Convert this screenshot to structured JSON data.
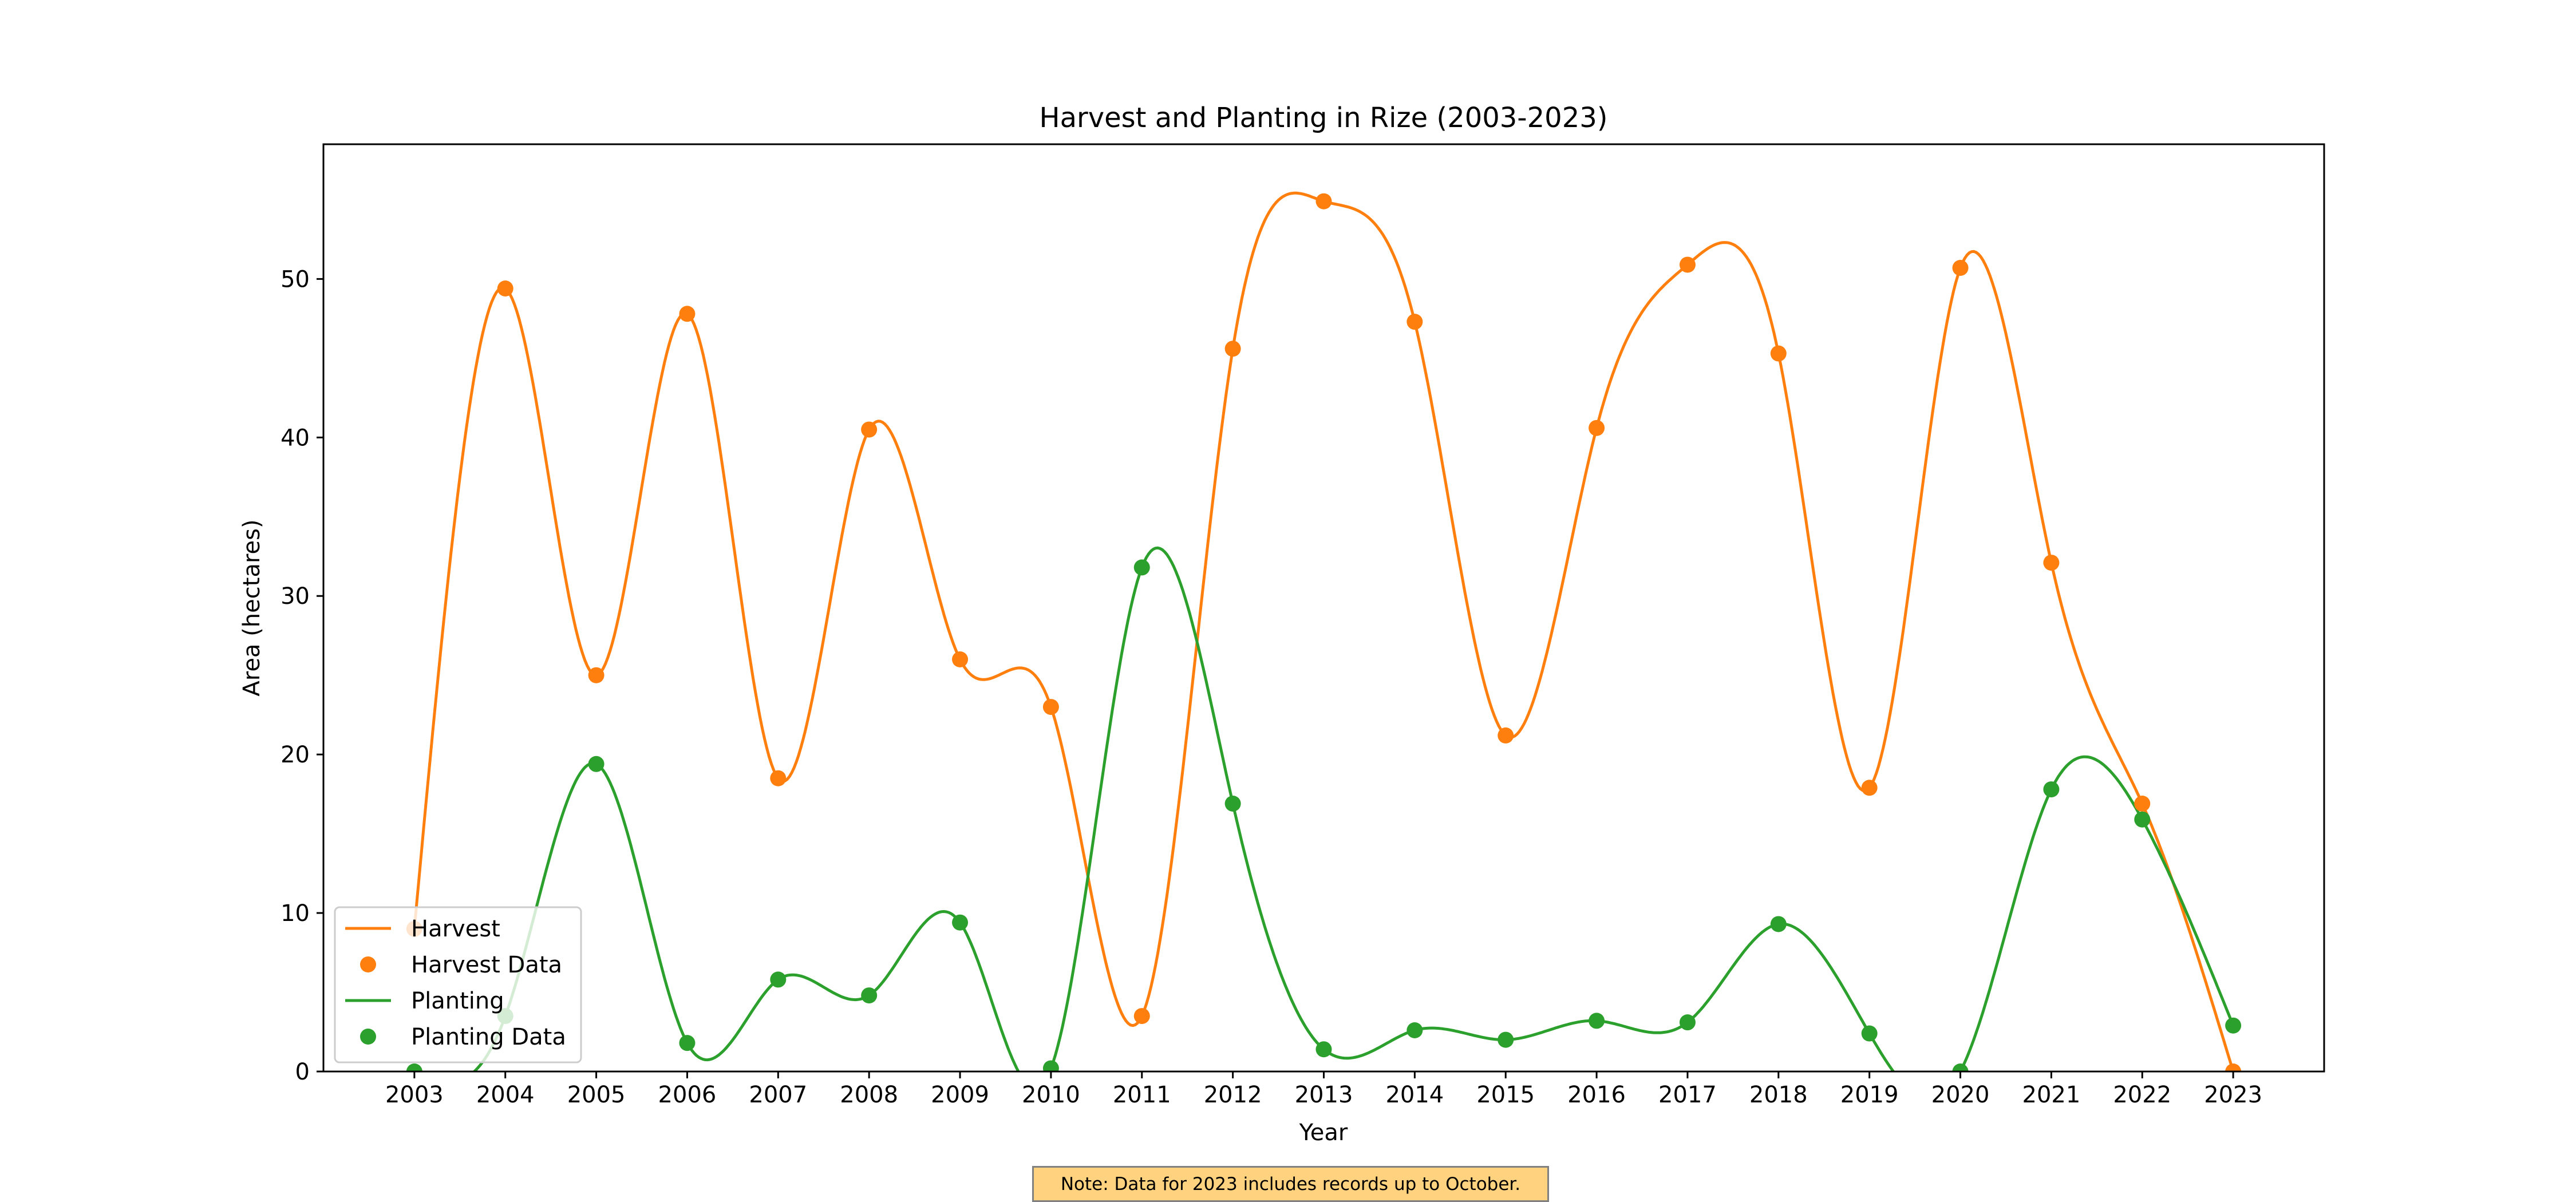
{
  "chart_data": {
    "type": "line",
    "title": "Harvest and Planting in Rize (2003-2023)",
    "xlabel": "Year",
    "ylabel": "Area (hectares)",
    "x": [
      2003,
      2004,
      2005,
      2006,
      2007,
      2008,
      2009,
      2010,
      2011,
      2012,
      2013,
      2014,
      2015,
      2016,
      2017,
      2018,
      2019,
      2020,
      2021,
      2022,
      2023
    ],
    "xticks": [
      "2003",
      "2004",
      "2005",
      "2006",
      "2007",
      "2008",
      "2009",
      "2010",
      "2011",
      "2012",
      "2013",
      "2014",
      "2015",
      "2016",
      "2017",
      "2018",
      "2019",
      "2020",
      "2021",
      "2022",
      "2023"
    ],
    "xlim": [
      2002,
      2024
    ],
    "ylim": [
      0,
      58.5
    ],
    "yticks": [
      0,
      10,
      20,
      30,
      40,
      50
    ],
    "grid": false,
    "legend_position": "lower-left",
    "series": [
      {
        "name": "Harvest",
        "marker_label": "Harvest Data",
        "color": "#ff7f0e",
        "smooth": true,
        "values": [
          9.0,
          49.4,
          25.0,
          47.8,
          18.5,
          40.5,
          26.0,
          23.0,
          3.5,
          45.6,
          54.9,
          47.3,
          21.2,
          40.6,
          50.9,
          45.3,
          17.9,
          50.7,
          32.1,
          16.9,
          0.0
        ]
      },
      {
        "name": "Planting",
        "marker_label": "Planting Data",
        "color": "#2ca02c",
        "smooth": true,
        "values": [
          0.0,
          3.5,
          19.4,
          1.8,
          5.8,
          4.8,
          9.4,
          0.2,
          31.8,
          16.9,
          1.4,
          2.6,
          2.0,
          3.2,
          3.1,
          9.3,
          2.4,
          0.0,
          17.8,
          15.9,
          2.9
        ]
      }
    ],
    "legend": [
      "Harvest",
      "Harvest Data",
      "Planting",
      "Planting Data"
    ]
  },
  "note": "Note: Data for 2023 includes records up to October."
}
